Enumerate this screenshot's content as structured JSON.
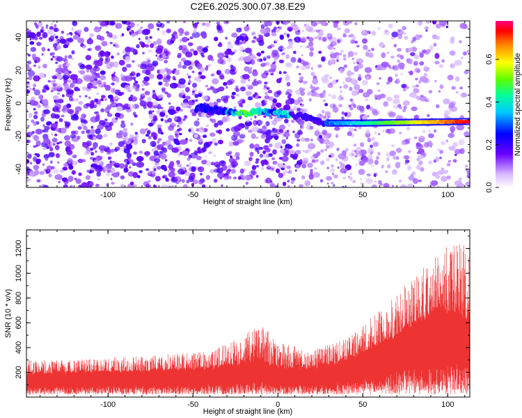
{
  "title": "C2E6.2025.300.07.38.E29",
  "colors": {
    "snr_line": "#ee3333",
    "axis": "#000000"
  },
  "chart_data": [
    {
      "type": "heatmap",
      "name": "spectrogram",
      "xlabel": "Height of straight line (km)",
      "ylabel": "Frequency (Hz)",
      "xlim": [
        -148,
        113
      ],
      "ylim": [
        -51,
        50
      ],
      "xticks": [
        -100,
        -50,
        0,
        50,
        100
      ],
      "yticks": [
        -40,
        -20,
        0,
        20,
        40
      ],
      "xtick_labels": [
        "-100",
        "-50",
        "0",
        "50",
        "100"
      ],
      "ytick_labels": [
        "-40",
        "-20",
        "0",
        "20",
        "40"
      ],
      "colorbar": {
        "label": "Normalized spectral amplitude",
        "range": [
          0,
          0.78
        ],
        "ticks": [
          0,
          0.2,
          0.4,
          0.6
        ],
        "tick_labels": [
          "0.0",
          "0.2",
          "0.4",
          "0.6"
        ]
      },
      "ridge": {
        "description_points_km_hz": [
          [
            -45,
            -3
          ],
          [
            -30,
            -5
          ],
          [
            -20,
            -6
          ],
          [
            -10,
            -5
          ],
          [
            0,
            -6
          ],
          [
            15,
            -8
          ],
          [
            28,
            -12
          ],
          [
            50,
            -12
          ],
          [
            80,
            -11.5
          ],
          [
            113,
            -11
          ]
        ],
        "peak_amplitude": 0.75
      }
    },
    {
      "type": "line",
      "name": "snr",
      "xlabel": "Height of straight line (km)",
      "ylabel": "SNR (10 * v/v)",
      "xlim": [
        -148,
        113
      ],
      "ylim": [
        0,
        1350
      ],
      "xticks": [
        -100,
        -50,
        0,
        50,
        100
      ],
      "yticks": [
        200,
        400,
        600,
        800,
        1000,
        1200
      ],
      "xtick_labels": [
        "-100",
        "-50",
        "0",
        "50",
        "100"
      ],
      "ytick_labels": [
        "200",
        "400",
        "600",
        "800",
        "1000",
        "1200"
      ],
      "envelope": {
        "x": [
          -148,
          -120,
          -100,
          -80,
          -60,
          -40,
          -20,
          -10,
          0,
          20,
          40,
          60,
          75,
          90,
          100,
          113
        ],
        "mean": [
          150,
          160,
          160,
          165,
          170,
          185,
          220,
          240,
          190,
          180,
          240,
          330,
          440,
          520,
          560,
          500
        ],
        "max": [
          300,
          300,
          320,
          330,
          350,
          370,
          500,
          600,
          450,
          380,
          470,
          700,
          900,
          1100,
          1250,
          1250
        ]
      }
    }
  ]
}
